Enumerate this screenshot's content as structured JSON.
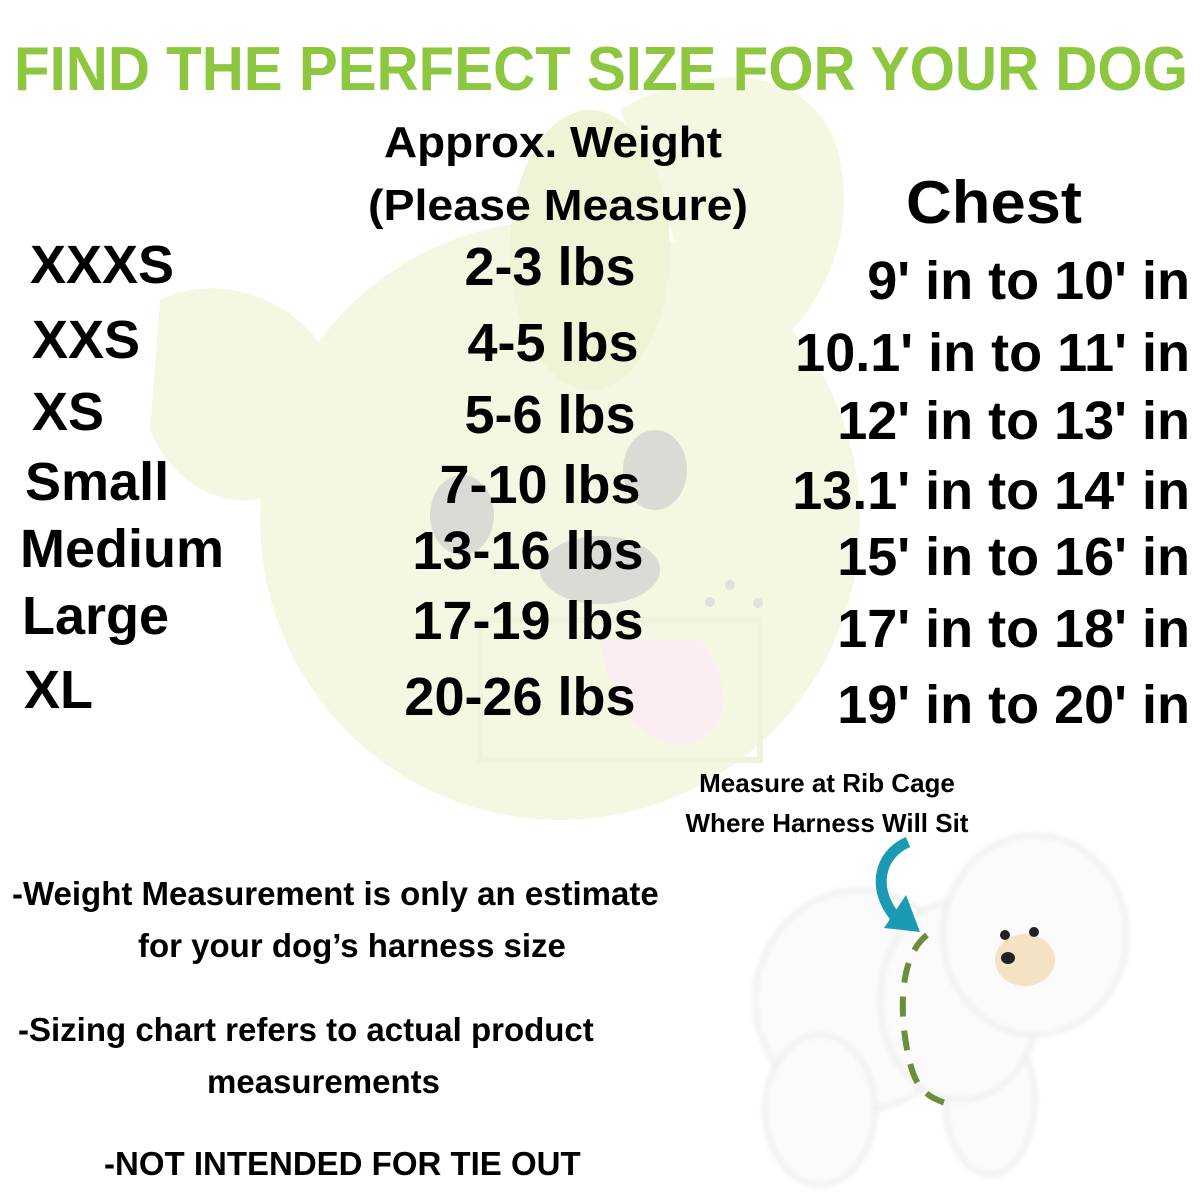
{
  "title": "FIND THE PERFECT SIZE FOR YOUR DOG",
  "colors": {
    "title": "#8dc63f",
    "arrow": "#1a9bb3",
    "dashed_line": "#6b8e3a",
    "background_art": "#f4f8e2"
  },
  "headers": {
    "weight_line1": "Approx. Weight",
    "weight_line2": "(Please Measure)",
    "chest": "Chest"
  },
  "rows": [
    {
      "size": "XXXS",
      "weight": "2-3 lbs",
      "chest": "9' in to 10' in"
    },
    {
      "size": "XXS",
      "weight": "4-5 lbs",
      "chest": "10.1' in to 11' in"
    },
    {
      "size": "XS",
      "weight": "5-6 lbs",
      "chest": "12' in to 13' in"
    },
    {
      "size": "Small",
      "weight": "7-10 lbs",
      "chest": "13.1' in to 14' in"
    },
    {
      "size": "Medium",
      "weight": "13-16 lbs",
      "chest": "15' in to 16' in"
    },
    {
      "size": "Large",
      "weight": "17-19 lbs",
      "chest": "17' in to 18' in"
    },
    {
      "size": "XL",
      "weight": "20-26 lbs",
      "chest": "19' in to 20' in"
    }
  ],
  "measure_caption": {
    "line1": "Measure at Rib Cage",
    "line2": "Where Harness Will Sit"
  },
  "notes": {
    "weight_line1": "-Weight Measurement is only an estimate",
    "weight_line2": "for your dog’s harness size",
    "sizing_line1": "-Sizing chart refers to actual product",
    "sizing_line2": "measurements",
    "tie_out": "-NOT INTENDED FOR TIE OUT"
  },
  "icons": {
    "arrow": "curved-arrow-icon",
    "dog": "bichon-dog-photo"
  }
}
